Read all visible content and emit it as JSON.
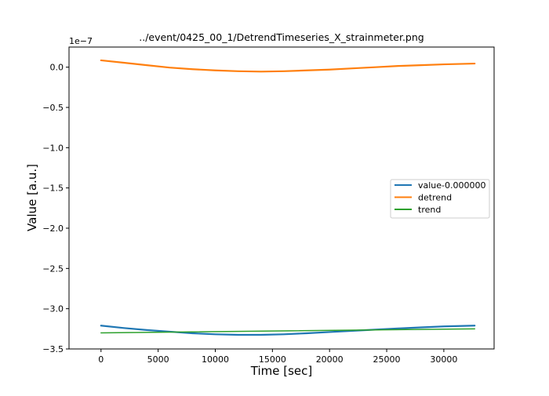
{
  "chart_data": {
    "type": "line",
    "title": "../event/0425_00_1/DetrendTimeseries_X_strainmeter.png",
    "xlabel": "Time [sec]",
    "ylabel": "Value [a.u.]",
    "y_offset_text": "1e−7",
    "xlim": [
      -2800,
      34400
    ],
    "ylim": [
      -3.5,
      0.25
    ],
    "y_scale_note": "values in units of 1e-7",
    "xticks": [
      0,
      5000,
      10000,
      15000,
      20000,
      25000,
      30000
    ],
    "xtick_labels": [
      "0",
      "5000",
      "10000",
      "15000",
      "20000",
      "25000",
      "30000"
    ],
    "yticks": [
      0.0,
      -0.5,
      -1.0,
      -1.5,
      -2.0,
      -2.5,
      -3.0,
      -3.5
    ],
    "ytick_labels": [
      "0.0",
      "−0.5",
      "−1.0",
      "−1.5",
      "−2.0",
      "−2.5",
      "−3.0",
      "−3.5"
    ],
    "grid": false,
    "legend_position": "center-right",
    "series": [
      {
        "name": "value-0.000000",
        "color": "#1f77b4",
        "x": [
          0,
          2000,
          4000,
          6000,
          8000,
          10000,
          12000,
          14000,
          16000,
          18000,
          20000,
          22000,
          24000,
          26000,
          28000,
          30000,
          32700
        ],
        "y": [
          -3.21,
          -3.24,
          -3.265,
          -3.285,
          -3.305,
          -3.318,
          -3.325,
          -3.325,
          -3.318,
          -3.305,
          -3.29,
          -3.275,
          -3.26,
          -3.245,
          -3.232,
          -3.22,
          -3.21
        ]
      },
      {
        "name": "detrend",
        "color": "#ff7f0e",
        "x": [
          0,
          2000,
          4000,
          6000,
          8000,
          10000,
          12000,
          14000,
          16000,
          18000,
          20000,
          22000,
          24000,
          26000,
          28000,
          30000,
          32700
        ],
        "y": [
          0.085,
          0.055,
          0.025,
          -0.005,
          -0.025,
          -0.04,
          -0.05,
          -0.055,
          -0.05,
          -0.04,
          -0.03,
          -0.015,
          0.0,
          0.015,
          0.025,
          0.035,
          0.045
        ]
      },
      {
        "name": "trend",
        "color": "#2ca02c",
        "x": [
          0,
          32700
        ],
        "y": [
          -3.3,
          -3.25
        ]
      }
    ]
  }
}
